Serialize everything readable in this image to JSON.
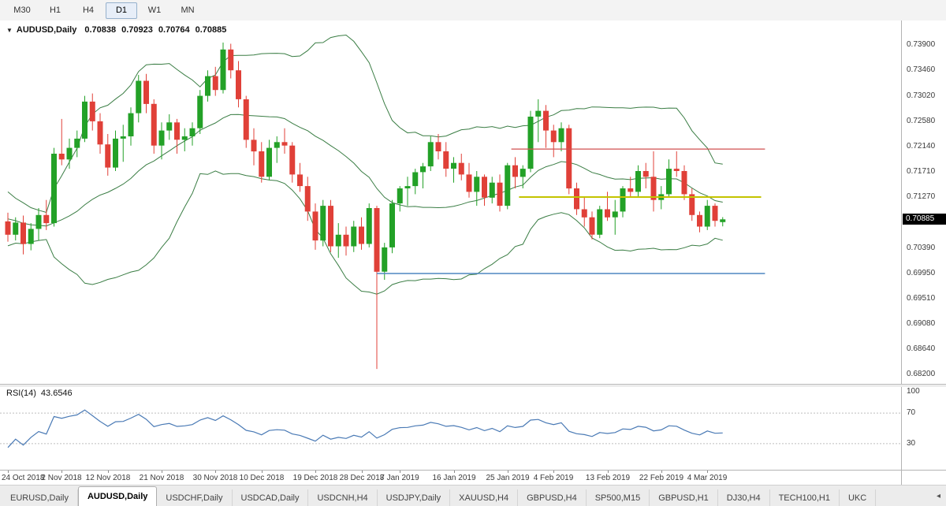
{
  "toolbar": {
    "timeframes": [
      "M30",
      "H1",
      "H4",
      "D1",
      "W1",
      "MN"
    ],
    "active": "D1"
  },
  "chart_header": {
    "menu_icon": "▼",
    "symbol": "AUDUSD,Daily",
    "open": "0.70838",
    "high": "0.70923",
    "low": "0.70764",
    "close": "0.70885"
  },
  "price_axis": {
    "labels": [
      "0.73900",
      "0.73460",
      "0.73020",
      "0.72580",
      "0.72140",
      "0.71710",
      "0.71270",
      "0.70830",
      "0.70390",
      "0.69950",
      "0.69510",
      "0.69080",
      "0.68640",
      "0.68200"
    ],
    "current_price": "0.70885",
    "badge_bg": "#000000",
    "badge_text": "#ffffff"
  },
  "rsi_panel": {
    "label": "RSI(14)",
    "value": "43.6546",
    "axis_labels": [
      "100",
      "70",
      "30"
    ]
  },
  "tabs": {
    "items": [
      "EURUSD,Daily",
      "AUDUSD,Daily",
      "USDCHF,Daily",
      "USDCAD,Daily",
      "USDCNH,H4",
      "USDJPY,Daily",
      "XAUUSD,H4",
      "GBPUSD,H4",
      "SP500,M15",
      "GBPUSD,H1",
      "DJ30,H4",
      "TECH100,H1",
      "UKC"
    ],
    "active_index": 1,
    "scroll_arrow": "◂"
  },
  "chart_data": {
    "type": "candlestick",
    "title": "AUDUSD,Daily",
    "price_range": [
      0.6822,
      0.7394
    ],
    "colors": {
      "bull": "#23a127",
      "bear": "#e04038",
      "bollinger": "#3a7d44",
      "rsi": "#4a7ab5",
      "hline_red": "#d05050",
      "hline_yellow": "#c3c300",
      "hline_blue": "#4f87c0"
    },
    "candles": [
      [
        0.7085,
        0.71,
        0.705,
        0.7062
      ],
      [
        0.7062,
        0.7092,
        0.7052,
        0.7083
      ],
      [
        0.7083,
        0.7095,
        0.7028,
        0.7046
      ],
      [
        0.7046,
        0.7082,
        0.7035,
        0.7072
      ],
      [
        0.7072,
        0.7108,
        0.7052,
        0.7096
      ],
      [
        0.7096,
        0.7122,
        0.707,
        0.7082
      ],
      [
        0.7082,
        0.7212,
        0.7076,
        0.7202
      ],
      [
        0.7202,
        0.7262,
        0.7182,
        0.7192
      ],
      [
        0.7192,
        0.7228,
        0.7176,
        0.7212
      ],
      [
        0.7212,
        0.7242,
        0.7196,
        0.7228
      ],
      [
        0.7228,
        0.7302,
        0.7222,
        0.7292
      ],
      [
        0.7292,
        0.7306,
        0.7242,
        0.7258
      ],
      [
        0.7258,
        0.7272,
        0.7202,
        0.7218
      ],
      [
        0.7218,
        0.7236,
        0.7164,
        0.7178
      ],
      [
        0.7178,
        0.7242,
        0.7172,
        0.7228
      ],
      [
        0.7228,
        0.7252,
        0.7188,
        0.7232
      ],
      [
        0.7232,
        0.7282,
        0.7216,
        0.7272
      ],
      [
        0.7272,
        0.7338,
        0.7256,
        0.7328
      ],
      [
        0.7328,
        0.734,
        0.7272,
        0.7288
      ],
      [
        0.7288,
        0.7296,
        0.7202,
        0.7216
      ],
      [
        0.7216,
        0.7256,
        0.7192,
        0.7242
      ],
      [
        0.7242,
        0.727,
        0.7226,
        0.7256
      ],
      [
        0.7256,
        0.7262,
        0.7202,
        0.7226
      ],
      [
        0.7226,
        0.7246,
        0.7206,
        0.7232
      ],
      [
        0.7232,
        0.7256,
        0.7216,
        0.7246
      ],
      [
        0.7246,
        0.7312,
        0.7236,
        0.7302
      ],
      [
        0.7302,
        0.7346,
        0.7292,
        0.7336
      ],
      [
        0.7336,
        0.7352,
        0.7302,
        0.7312
      ],
      [
        0.7312,
        0.7394,
        0.7306,
        0.7382
      ],
      [
        0.7382,
        0.7392,
        0.7332,
        0.7346
      ],
      [
        0.7346,
        0.7362,
        0.7282,
        0.7296
      ],
      [
        0.7296,
        0.7302,
        0.7212,
        0.7226
      ],
      [
        0.7226,
        0.7246,
        0.7182,
        0.7206
      ],
      [
        0.7206,
        0.7222,
        0.7152,
        0.7162
      ],
      [
        0.7162,
        0.7226,
        0.7156,
        0.7212
      ],
      [
        0.7212,
        0.7232,
        0.7186,
        0.7222
      ],
      [
        0.7222,
        0.7246,
        0.7202,
        0.7216
      ],
      [
        0.7216,
        0.7222,
        0.7152,
        0.7166
      ],
      [
        0.7166,
        0.7186,
        0.7136,
        0.7146
      ],
      [
        0.7146,
        0.7162,
        0.7086,
        0.7102
      ],
      [
        0.7102,
        0.7116,
        0.7036,
        0.7052
      ],
      [
        0.7052,
        0.7122,
        0.7042,
        0.7112
      ],
      [
        0.7112,
        0.7122,
        0.7032,
        0.7042
      ],
      [
        0.7042,
        0.7082,
        0.7022,
        0.7062
      ],
      [
        0.7062,
        0.7076,
        0.7026,
        0.7042
      ],
      [
        0.7042,
        0.7086,
        0.7032,
        0.7076
      ],
      [
        0.7076,
        0.7092,
        0.7036,
        0.7046
      ],
      [
        0.7046,
        0.7116,
        0.704,
        0.7108
      ],
      [
        0.7108,
        0.7112,
        0.683,
        0.6998
      ],
      [
        0.6998,
        0.7048,
        0.6984,
        0.704
      ],
      [
        0.704,
        0.7122,
        0.703,
        0.7116
      ],
      [
        0.7116,
        0.7146,
        0.7102,
        0.7142
      ],
      [
        0.7142,
        0.7162,
        0.7112,
        0.7146
      ],
      [
        0.7146,
        0.7176,
        0.7132,
        0.717
      ],
      [
        0.717,
        0.7186,
        0.7142,
        0.718
      ],
      [
        0.718,
        0.7232,
        0.7172,
        0.7222
      ],
      [
        0.7222,
        0.7236,
        0.7192,
        0.7206
      ],
      [
        0.7206,
        0.7222,
        0.7162,
        0.7176
      ],
      [
        0.7176,
        0.7196,
        0.7152,
        0.7186
      ],
      [
        0.7186,
        0.7202,
        0.7156,
        0.7166
      ],
      [
        0.7166,
        0.7186,
        0.7126,
        0.7136
      ],
      [
        0.7136,
        0.7172,
        0.7112,
        0.7162
      ],
      [
        0.7162,
        0.7166,
        0.7112,
        0.7126
      ],
      [
        0.7126,
        0.7162,
        0.7116,
        0.7152
      ],
      [
        0.7152,
        0.7166,
        0.7102,
        0.7112
      ],
      [
        0.7112,
        0.7186,
        0.7106,
        0.7182
      ],
      [
        0.7182,
        0.7196,
        0.7142,
        0.7162
      ],
      [
        0.7162,
        0.7182,
        0.7142,
        0.7176
      ],
      [
        0.7176,
        0.7276,
        0.717,
        0.7266
      ],
      [
        0.7266,
        0.7296,
        0.7222,
        0.7276
      ],
      [
        0.7276,
        0.7286,
        0.7212,
        0.7242
      ],
      [
        0.7242,
        0.7252,
        0.7196,
        0.7222
      ],
      [
        0.7222,
        0.7256,
        0.7206,
        0.7246
      ],
      [
        0.7246,
        0.7252,
        0.7132,
        0.7142
      ],
      [
        0.7142,
        0.7152,
        0.7096,
        0.7106
      ],
      [
        0.7106,
        0.7126,
        0.7076,
        0.7092
      ],
      [
        0.7092,
        0.7102,
        0.7054,
        0.7062
      ],
      [
        0.7062,
        0.7112,
        0.7056,
        0.7106
      ],
      [
        0.7106,
        0.7136,
        0.7086,
        0.7092
      ],
      [
        0.7092,
        0.7122,
        0.7062,
        0.7102
      ],
      [
        0.7102,
        0.7146,
        0.7092,
        0.7142
      ],
      [
        0.7142,
        0.7162,
        0.7126,
        0.7136
      ],
      [
        0.7136,
        0.7182,
        0.7126,
        0.7172
      ],
      [
        0.7172,
        0.7186,
        0.7142,
        0.7162
      ],
      [
        0.7162,
        0.7206,
        0.7102,
        0.7122
      ],
      [
        0.7122,
        0.7146,
        0.7106,
        0.7132
      ],
      [
        0.7132,
        0.7192,
        0.7126,
        0.7176
      ],
      [
        0.7176,
        0.7206,
        0.7162,
        0.7172
      ],
      [
        0.7172,
        0.7182,
        0.7122,
        0.7132
      ],
      [
        0.7132,
        0.7142,
        0.7086,
        0.7096
      ],
      [
        0.7096,
        0.7102,
        0.7066,
        0.7076
      ],
      [
        0.7076,
        0.7122,
        0.707,
        0.7112
      ],
      [
        0.7112,
        0.7116,
        0.7076,
        0.7086
      ],
      [
        0.70838,
        0.70923,
        0.70764,
        0.70885
      ]
    ],
    "x_labels": [
      {
        "i": 0,
        "t": "24 Oct 2018"
      },
      {
        "i": 7,
        "t": "2 Nov 2018"
      },
      {
        "i": 13,
        "t": "12 Nov 2018"
      },
      {
        "i": 20,
        "t": "21 Nov 2018"
      },
      {
        "i": 27,
        "t": "30 Nov 2018"
      },
      {
        "i": 33,
        "t": "10 Dec 2018"
      },
      {
        "i": 40,
        "t": "19 Dec 2018"
      },
      {
        "i": 46,
        "t": "28 Dec 2018"
      },
      {
        "i": 51,
        "t": "7 Jan 2019"
      },
      {
        "i": 58,
        "t": "16 Jan 2019"
      },
      {
        "i": 65,
        "t": "25 Jan 2019"
      },
      {
        "i": 71,
        "t": "4 Feb 2019"
      },
      {
        "i": 78,
        "t": "13 Feb 2019"
      },
      {
        "i": 85,
        "t": "22 Feb 2019"
      },
      {
        "i": 91,
        "t": "4 Mar 2019"
      }
    ],
    "overlays": {
      "bollinger": {
        "period": 20,
        "deviation": 2,
        "seed_closes": [
          0.7155,
          0.7146,
          0.7136,
          0.7125,
          0.7114,
          0.7104,
          0.7094,
          0.7085,
          0.7078,
          0.7072,
          0.7068,
          0.7066,
          0.7072,
          0.7082,
          0.7092,
          0.7086,
          0.7076,
          0.7068,
          0.7076,
          0.7086
        ]
      },
      "hlines": [
        {
          "name": "resistance-line-red",
          "price": 0.721,
          "color_key": "hline_red",
          "from": 65.5,
          "to": 98.5,
          "width": 1.2
        },
        {
          "name": "support-line-yellow",
          "price": 0.7127,
          "color_key": "hline_yellow",
          "from": 66.5,
          "to": 98.0,
          "width": 2
        },
        {
          "name": "support-line-blue",
          "price": 0.6995,
          "color_key": "hline_blue",
          "from": 48.0,
          "to": 98.5,
          "width": 1.6
        }
      ]
    },
    "rsi": {
      "period": 14,
      "levels": [
        70,
        30
      ],
      "range": [
        0,
        100
      ],
      "current": 43.6546
    }
  }
}
